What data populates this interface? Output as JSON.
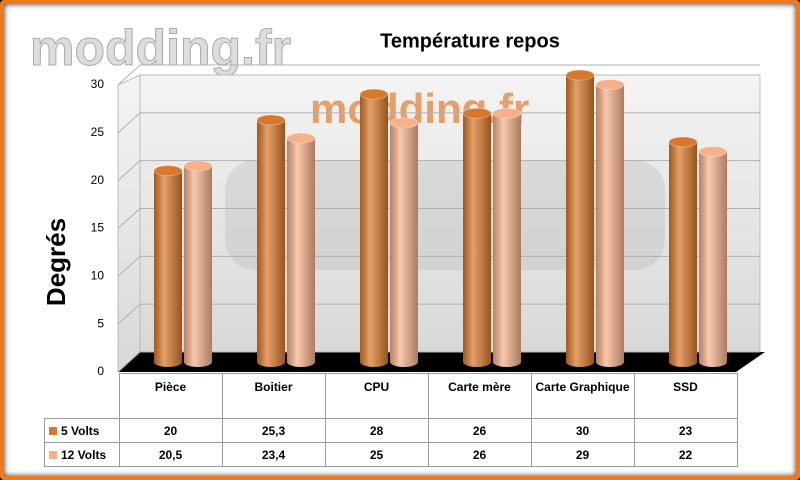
{
  "watermark": "modding.fr",
  "chart_data": {
    "type": "bar",
    "title": "Température repos",
    "y_label": "Degrés",
    "categories": [
      "Pièce",
      "Boitier",
      "CPU",
      "Carte mère",
      "Carte Graphique",
      "SSD"
    ],
    "series": [
      {
        "name": "5 Volts",
        "color": "#d9772b",
        "values": [
          20,
          25.3,
          28,
          26,
          30,
          23
        ],
        "value_labels": [
          "20",
          "25,3",
          "28",
          "26",
          "30",
          "23"
        ]
      },
      {
        "name": "12 Volts",
        "color": "#f6b08a",
        "values": [
          20.5,
          23.4,
          25,
          26,
          29,
          22
        ],
        "value_labels": [
          "20,5",
          "23,4",
          "25",
          "26",
          "29",
          "22"
        ]
      }
    ],
    "ylim": [
      0,
      30
    ],
    "yticks": [
      0,
      5,
      10,
      15,
      20,
      25,
      30
    ],
    "grid": true
  }
}
